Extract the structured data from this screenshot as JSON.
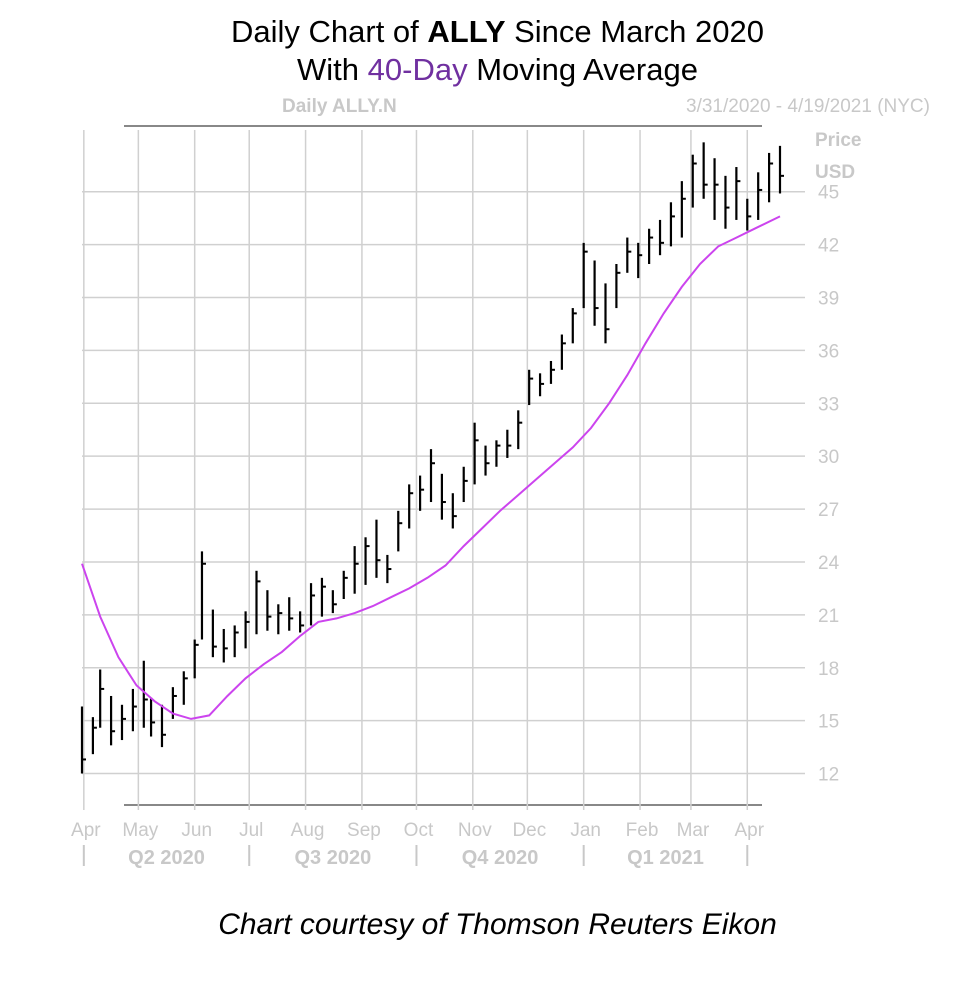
{
  "title": {
    "line1_pre": "Daily Chart of ",
    "line1_bold": "ALLY",
    "line1_post": " Since March 2020",
    "line2_pre": "With ",
    "line2_highlight": "40-Day",
    "line2_post": " Moving Average"
  },
  "credit": "Chart courtesy of Thomson Reuters Eikon",
  "chart_data": {
    "type": "line",
    "symbol_label": "Daily ALLY.N",
    "date_range_label": "3/31/2020 - 4/19/2021 (NYC)",
    "ylabel": "Price",
    "yunit": "USD",
    "ylim": [
      10.5,
      48.5
    ],
    "yticks": [
      12,
      15,
      18,
      21,
      24,
      27,
      30,
      33,
      36,
      39,
      42,
      45
    ],
    "xlim": [
      "2020-03-31",
      "2021-04-19"
    ],
    "month_ticks": [
      {
        "label": "Apr",
        "date": "2020-04-01"
      },
      {
        "label": "May",
        "date": "2020-05-01"
      },
      {
        "label": "Jun",
        "date": "2020-06-01"
      },
      {
        "label": "Jul",
        "date": "2020-07-01"
      },
      {
        "label": "Aug",
        "date": "2020-08-01"
      },
      {
        "label": "Sep",
        "date": "2020-09-01"
      },
      {
        "label": "Oct",
        "date": "2020-10-01"
      },
      {
        "label": "Nov",
        "date": "2020-11-01"
      },
      {
        "label": "Dec",
        "date": "2020-12-01"
      },
      {
        "label": "Jan",
        "date": "2021-01-01"
      },
      {
        "label": "Feb",
        "date": "2021-02-01"
      },
      {
        "label": "Mar",
        "date": "2021-03-01"
      },
      {
        "label": "Apr",
        "date": "2021-04-01"
      }
    ],
    "quarters": [
      {
        "label": "Q2 2020",
        "start": "2020-04-01",
        "end": "2020-07-01"
      },
      {
        "label": "Q3 2020",
        "start": "2020-07-01",
        "end": "2020-10-01"
      },
      {
        "label": "Q4 2020",
        "start": "2020-10-01",
        "end": "2021-01-01"
      },
      {
        "label": "Q1 2021",
        "start": "2021-01-01",
        "end": "2021-04-01"
      }
    ],
    "grid": true,
    "colors": {
      "price": "#000000",
      "moving_average": "#cc44ee",
      "grid": "#d0d0d0",
      "axis_text": "#c8c8c8",
      "highlight": "#7030a0"
    },
    "series": [
      {
        "kind": "ohlc-bars",
        "x": [
          "2020-03-31",
          "2020-04-06",
          "2020-04-10",
          "2020-04-16",
          "2020-04-22",
          "2020-04-28",
          "2020-05-04",
          "2020-05-08",
          "2020-05-14",
          "2020-05-20",
          "2020-05-26",
          "2020-06-01",
          "2020-06-05",
          "2020-06-11",
          "2020-06-17",
          "2020-06-23",
          "2020-06-29",
          "2020-07-05",
          "2020-07-11",
          "2020-07-17",
          "2020-07-23",
          "2020-07-29",
          "2020-08-04",
          "2020-08-10",
          "2020-08-16",
          "2020-08-22",
          "2020-08-28",
          "2020-09-03",
          "2020-09-09",
          "2020-09-15",
          "2020-09-21",
          "2020-09-27",
          "2020-10-03",
          "2020-10-09",
          "2020-10-15",
          "2020-10-21",
          "2020-10-27",
          "2020-11-02",
          "2020-11-08",
          "2020-11-14",
          "2020-11-20",
          "2020-11-26",
          "2020-12-02",
          "2020-12-08",
          "2020-12-14",
          "2020-12-20",
          "2020-12-26",
          "2021-01-01",
          "2021-01-07",
          "2021-01-13",
          "2021-01-19",
          "2021-01-25",
          "2021-01-31",
          "2021-02-06",
          "2021-02-12",
          "2021-02-18",
          "2021-02-24",
          "2021-03-02",
          "2021-03-08",
          "2021-03-14",
          "2021-03-20",
          "2021-03-26",
          "2021-04-01",
          "2021-04-07",
          "2021-04-13",
          "2021-04-19"
        ],
        "high": [
          15.8,
          15.2,
          17.9,
          16.4,
          15.9,
          16.8,
          18.4,
          16.3,
          15.9,
          16.9,
          17.8,
          19.6,
          24.6,
          21.3,
          20.2,
          20.4,
          21.2,
          23.5,
          22.4,
          21.6,
          22.0,
          21.2,
          22.8,
          23.1,
          22.4,
          23.5,
          24.9,
          25.4,
          26.4,
          24.4,
          26.9,
          28.4,
          28.9,
          30.4,
          29.0,
          27.9,
          29.4,
          31.9,
          30.6,
          30.9,
          31.5,
          32.6,
          34.9,
          34.7,
          35.4,
          36.9,
          38.4,
          42.1,
          41.1,
          39.8,
          40.9,
          42.4,
          42.1,
          42.9,
          43.4,
          44.4,
          45.6,
          47.1,
          47.8,
          46.9,
          45.9,
          46.4,
          44.6,
          46.1,
          47.2,
          47.6
        ],
        "low": [
          12.0,
          13.1,
          14.6,
          13.6,
          13.9,
          14.4,
          14.6,
          14.1,
          13.5,
          15.1,
          15.9,
          17.4,
          19.6,
          18.6,
          18.3,
          18.6,
          19.1,
          19.9,
          20.1,
          19.9,
          20.1,
          20.0,
          20.4,
          20.9,
          21.1,
          21.9,
          22.2,
          22.7,
          23.1,
          22.8,
          24.6,
          25.9,
          26.9,
          27.4,
          26.4,
          25.9,
          27.4,
          28.4,
          28.9,
          29.4,
          29.9,
          30.4,
          32.9,
          33.4,
          34.1,
          34.9,
          36.4,
          38.4,
          37.4,
          36.4,
          38.4,
          40.4,
          40.1,
          40.9,
          41.4,
          41.9,
          42.4,
          44.1,
          44.6,
          43.4,
          42.9,
          43.4,
          42.8,
          43.4,
          44.4,
          44.9
        ],
        "close": [
          12.8,
          14.6,
          16.8,
          14.4,
          15.1,
          15.8,
          16.2,
          14.9,
          14.2,
          16.4,
          17.4,
          19.3,
          23.9,
          19.2,
          19.1,
          20.0,
          20.6,
          22.9,
          20.9,
          21.1,
          20.8,
          20.4,
          22.1,
          22.6,
          21.6,
          23.1,
          23.9,
          24.9,
          24.1,
          23.6,
          26.2,
          27.9,
          28.1,
          29.6,
          27.4,
          26.6,
          28.6,
          30.9,
          29.6,
          30.6,
          30.6,
          31.9,
          34.4,
          34.1,
          34.9,
          36.4,
          38.1,
          41.6,
          38.4,
          37.2,
          40.4,
          41.6,
          41.4,
          42.4,
          42.1,
          43.6,
          44.6,
          46.6,
          45.4,
          45.4,
          44.1,
          45.6,
          43.6,
          45.1,
          46.6,
          45.9
        ]
      },
      {
        "kind": "line",
        "name": "40-Day",
        "x": [
          "2020-03-31",
          "2020-04-10",
          "2020-04-20",
          "2020-04-30",
          "2020-05-10",
          "2020-05-20",
          "2020-05-30",
          "2020-06-09",
          "2020-06-19",
          "2020-06-29",
          "2020-07-09",
          "2020-07-19",
          "2020-07-29",
          "2020-08-08",
          "2020-08-18",
          "2020-08-28",
          "2020-09-07",
          "2020-09-17",
          "2020-09-27",
          "2020-10-07",
          "2020-10-17",
          "2020-10-27",
          "2020-11-06",
          "2020-11-16",
          "2020-11-26",
          "2020-12-06",
          "2020-12-16",
          "2020-12-26",
          "2021-01-05",
          "2021-01-15",
          "2021-01-25",
          "2021-02-04",
          "2021-02-14",
          "2021-02-24",
          "2021-03-06",
          "2021-03-16",
          "2021-03-26",
          "2021-04-05",
          "2021-04-19"
        ],
        "values": [
          23.9,
          20.9,
          18.6,
          17.0,
          16.1,
          15.4,
          15.1,
          15.3,
          16.4,
          17.4,
          18.2,
          18.9,
          19.8,
          20.6,
          20.8,
          21.1,
          21.5,
          22.0,
          22.5,
          23.1,
          23.8,
          24.9,
          25.9,
          26.9,
          27.8,
          28.7,
          29.6,
          30.5,
          31.6,
          33.0,
          34.6,
          36.4,
          38.1,
          39.6,
          40.9,
          41.9,
          42.4,
          42.9,
          43.6
        ]
      }
    ]
  }
}
